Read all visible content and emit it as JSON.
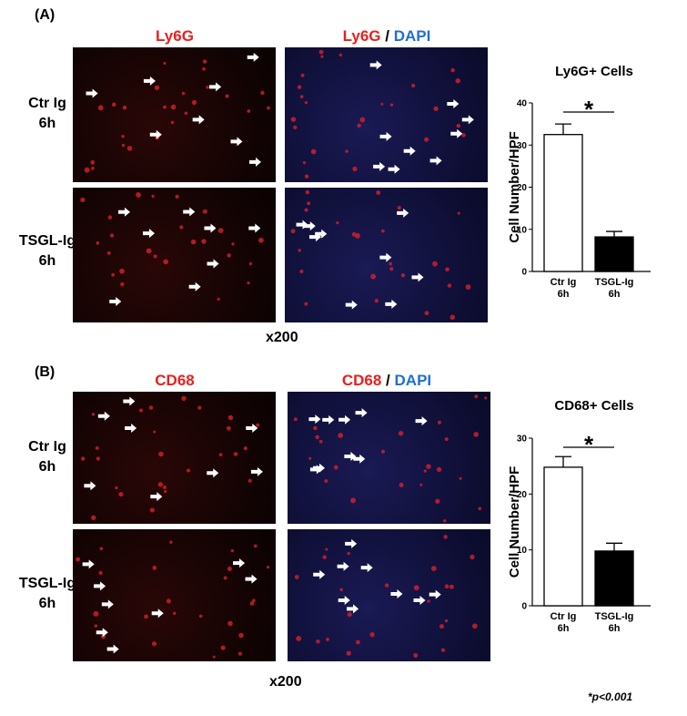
{
  "panels": [
    {
      "label": "(A)",
      "stain": "Ly6G",
      "merge_stain": "Ly6G",
      "separator": "/",
      "counterstain": "DAPI",
      "rows": [
        "Ctr Ig\n6h",
        "TSGL-Ig\n6h"
      ],
      "magnification": "x200"
    },
    {
      "label": "(B)",
      "stain": "CD68",
      "merge_stain": "CD68",
      "separator": "/",
      "counterstain": "DAPI",
      "rows": [
        "Ctr Ig\n6h",
        "TSGL-Ig\n6h"
      ],
      "magnification": "x200"
    }
  ],
  "footnote": "*p<0.001",
  "chart_data": [
    {
      "type": "bar",
      "title": "Ly6G+ Cells",
      "y_label": "Cell Number/HPF",
      "categories": [
        "Ctr Ig\n6h",
        "TSGL-Ig\n6h"
      ],
      "values": [
        32.5,
        8.2
      ],
      "errors": [
        2.5,
        1.3
      ],
      "colors": [
        "#ffffff",
        "#000000"
      ],
      "ylim": [
        0,
        40
      ],
      "yticks": [
        0,
        10,
        20,
        30,
        40
      ],
      "annotation": "*"
    },
    {
      "type": "bar",
      "title": "CD68+ Cells",
      "y_label": "Cell Number/HPF",
      "categories": [
        "Ctr Ig\n6h",
        "TSGL-Ig\n6h"
      ],
      "values": [
        24.8,
        9.8
      ],
      "errors": [
        1.9,
        1.4
      ],
      "colors": [
        "#ffffff",
        "#000000"
      ],
      "ylim": [
        0,
        30
      ],
      "yticks": [
        0,
        10,
        20,
        30
      ],
      "annotation": "*"
    }
  ]
}
